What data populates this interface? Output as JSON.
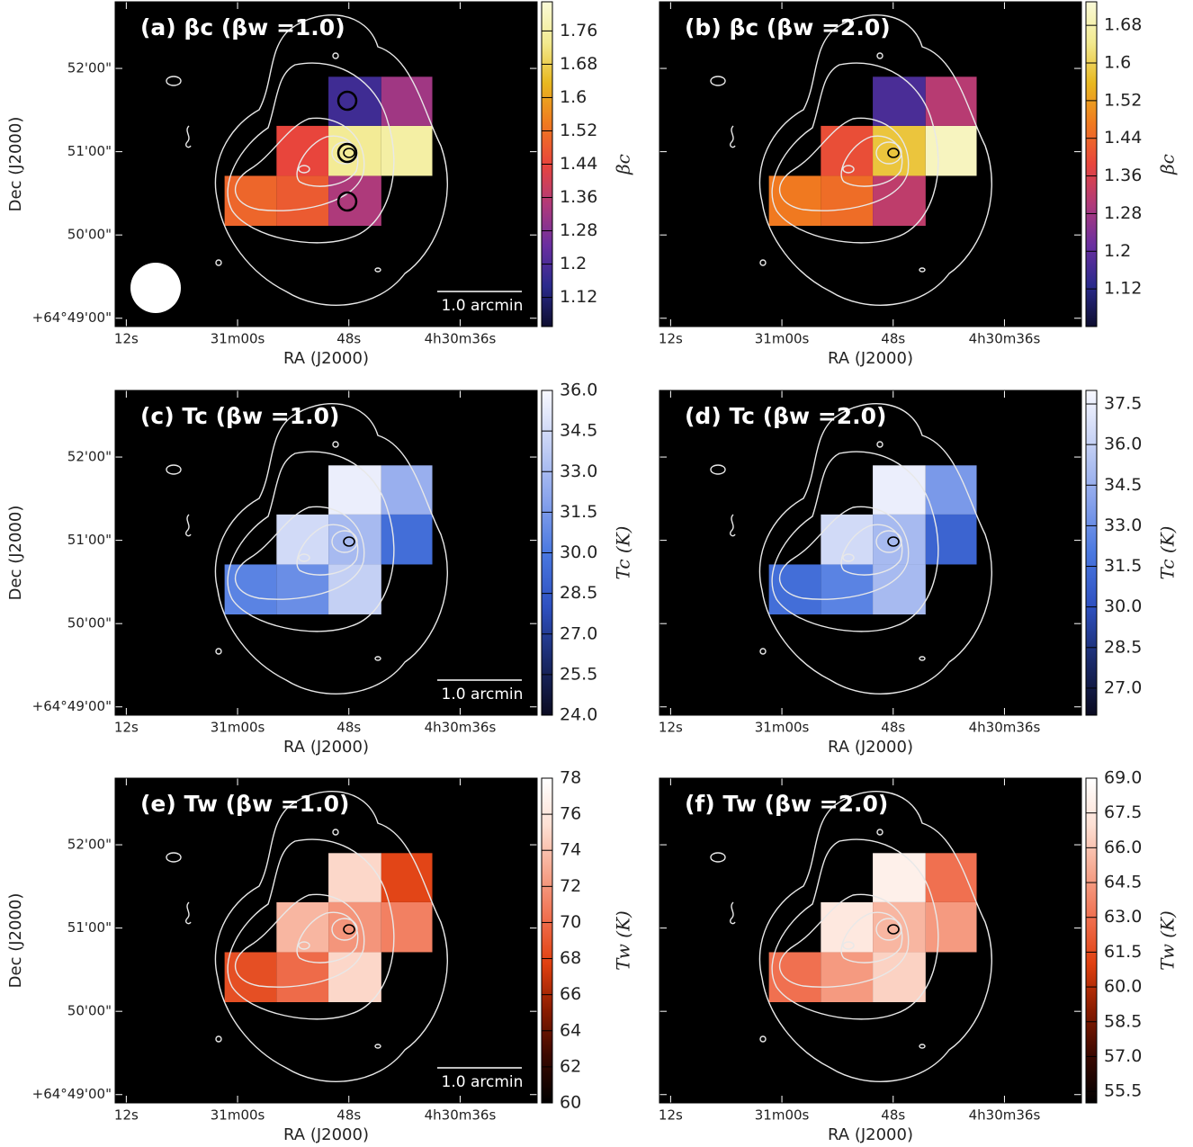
{
  "chart_data": [
    {
      "type": "map",
      "title": "(a) βc (βw =1.0)",
      "xlabel": "RA (J2000)",
      "ylabel": "Dec (J2000)",
      "xlim": [
        73.2,
        27.7
      ],
      "xticks": [
        {
          "value": 72,
          "label": "12s"
        },
        {
          "value": 60,
          "label": "31m00s"
        },
        {
          "value": 48,
          "label": "48s"
        },
        {
          "value": 36,
          "label": "4h30m36s"
        }
      ],
      "ylim": [
        48.9,
        52.8
      ],
      "yticks": [
        {
          "value": 49,
          "label": "+64°49'00\""
        },
        {
          "value": 50,
          "label": "50'00\""
        },
        {
          "value": 51,
          "label": "51'00\""
        },
        {
          "value": 52,
          "label": "52'00\""
        }
      ],
      "x_edges": [
        61.4,
        55.8,
        50.2,
        44.5,
        39.0
      ],
      "y_edges": [
        50.11,
        50.71,
        51.31,
        51.9
      ],
      "values": [
        [
          1.5,
          1.48,
          1.34,
          null
        ],
        [
          null,
          1.44,
          1.74,
          1.76
        ],
        [
          null,
          null,
          1.18,
          1.32
        ]
      ],
      "colormap": [
        "#0d0d2e",
        "#2a2a8c",
        "#6a2fa0",
        "#b03a7a",
        "#e8453c",
        "#f07a20",
        "#e8b820",
        "#f2ea90",
        "#fafad8"
      ],
      "clim": [
        1.05,
        1.83
      ],
      "cticks": [
        1.12,
        1.2,
        1.28,
        1.36,
        1.44,
        1.52,
        1.6,
        1.68,
        1.76
      ],
      "clabel": "βc",
      "scalebar": "1.0 arcmin"
    },
    {
      "type": "map",
      "title": "(b) βc (βw =2.0)",
      "xlabel": "RA (J2000)",
      "xlim": [
        73.2,
        27.7
      ],
      "xticks": [
        {
          "value": 72,
          "label": "12s"
        },
        {
          "value": 60,
          "label": "31m00s"
        },
        {
          "value": 48,
          "label": "48s"
        },
        {
          "value": 36,
          "label": "4h30m36s"
        }
      ],
      "ylim": [
        48.9,
        52.8
      ],
      "yticks": [
        49,
        50,
        51,
        52
      ],
      "x_edges": [
        61.4,
        55.8,
        50.2,
        44.5,
        39.0
      ],
      "y_edges": [
        50.11,
        50.71,
        51.31,
        51.9
      ],
      "values": [
        [
          1.47,
          1.45,
          1.32,
          null
        ],
        [
          null,
          1.4,
          1.58,
          1.7
        ],
        [
          null,
          null,
          1.17,
          1.31
        ]
      ],
      "colormap": [
        "#0d0d2e",
        "#2a2a8c",
        "#6a2fa0",
        "#b03a7a",
        "#e8453c",
        "#f07a20",
        "#e8b820",
        "#f2ea90",
        "#fafad8"
      ],
      "clim": [
        1.04,
        1.73
      ],
      "cticks": [
        1.12,
        1.2,
        1.28,
        1.36,
        1.44,
        1.52,
        1.6,
        1.68
      ],
      "clabel": "βc"
    },
    {
      "type": "map",
      "title": "(c) Tc (βw =1.0)",
      "xlabel": "RA (J2000)",
      "ylabel": "Dec (J2000)",
      "xlim": [
        73.2,
        27.7
      ],
      "xticks": [
        {
          "value": 72,
          "label": "12s"
        },
        {
          "value": 60,
          "label": "31m00s"
        },
        {
          "value": 48,
          "label": "48s"
        },
        {
          "value": 36,
          "label": "4h30m36s"
        }
      ],
      "ylim": [
        48.9,
        52.8
      ],
      "yticks": [
        {
          "value": 49,
          "label": "+64°49'00\""
        },
        {
          "value": 50,
          "label": "50'00\""
        },
        {
          "value": 51,
          "label": "51'00\""
        },
        {
          "value": 52,
          "label": "52'00\""
        }
      ],
      "x_edges": [
        61.4,
        55.8,
        50.2,
        44.5,
        39.0
      ],
      "y_edges": [
        50.11,
        50.71,
        51.31,
        51.9
      ],
      "values": [
        [
          30.5,
          31,
          34,
          null
        ],
        [
          null,
          34.5,
          33,
          29.5
        ],
        [
          null,
          null,
          35.5,
          32.5
        ]
      ],
      "colormap": [
        "#0a0a20",
        "#1a2a6a",
        "#2e50c0",
        "#4a78e0",
        "#8aa4ec",
        "#c4d0f4",
        "#f8f8ff"
      ],
      "clim": [
        24,
        36
      ],
      "cticks": [
        {
          "value": 24,
          "label": "24.0"
        },
        25.5,
        {
          "value": 27,
          "label": "27.0"
        },
        28.5,
        {
          "value": 30,
          "label": "30.0"
        },
        31.5,
        {
          "value": 33,
          "label": "33.0"
        },
        34.5,
        {
          "value": 36,
          "label": "36.0"
        }
      ],
      "clabel": "Tc (K)",
      "scalebar": "1.0 arcmin"
    },
    {
      "type": "map",
      "title": "(d) Tc (βw =2.0)",
      "xlabel": "RA (J2000)",
      "xlim": [
        73.2,
        27.7
      ],
      "xticks": [
        {
          "value": 72,
          "label": "12s"
        },
        {
          "value": 60,
          "label": "31m00s"
        },
        {
          "value": 48,
          "label": "48s"
        },
        {
          "value": 36,
          "label": "4h30m36s"
        }
      ],
      "ylim": [
        48.9,
        52.8
      ],
      "yticks": [
        49,
        50,
        51,
        52
      ],
      "x_edges": [
        61.4,
        55.8,
        50.2,
        44.5,
        39.0
      ],
      "y_edges": [
        50.11,
        50.71,
        51.31,
        51.9
      ],
      "values": [
        [
          31.5,
          32.5,
          35,
          null
        ],
        [
          null,
          36.5,
          35,
          31
        ],
        [
          null,
          null,
          37.5,
          33.5
        ]
      ],
      "colormap": [
        "#0a0a20",
        "#1a2a6a",
        "#2e50c0",
        "#4a78e0",
        "#8aa4ec",
        "#c4d0f4",
        "#f8f8ff"
      ],
      "clim": [
        26,
        38
      ],
      "cticks": [
        {
          "value": 27,
          "label": "27.0"
        },
        28.5,
        {
          "value": 30,
          "label": "30.0"
        },
        31.5,
        {
          "value": 33,
          "label": "33.0"
        },
        34.5,
        {
          "value": 36,
          "label": "36.0"
        },
        37.5
      ],
      "clabel": "Tc (K)"
    },
    {
      "type": "map",
      "title": "(e) Tw (βw =1.0)",
      "xlabel": "RA (J2000)",
      "ylabel": "Dec (J2000)",
      "xlim": [
        73.2,
        27.7
      ],
      "xticks": [
        {
          "value": 72,
          "label": "12s"
        },
        {
          "value": 60,
          "label": "31m00s"
        },
        {
          "value": 48,
          "label": "48s"
        },
        {
          "value": 36,
          "label": "4h30m36s"
        }
      ],
      "ylim": [
        48.9,
        52.8
      ],
      "yticks": [
        {
          "value": 49,
          "label": "+64°49'00\""
        },
        {
          "value": 50,
          "label": "50'00\""
        },
        {
          "value": 51,
          "label": "51'00\""
        },
        {
          "value": 52,
          "label": "52'00\""
        }
      ],
      "x_edges": [
        61.4,
        55.8,
        50.2,
        44.5,
        39.0
      ],
      "y_edges": [
        50.11,
        50.71,
        51.31,
        51.9
      ],
      "values": [
        [
          68.5,
          70,
          75,
          null
        ],
        [
          null,
          73.5,
          72,
          71
        ],
        [
          null,
          null,
          75,
          68
        ]
      ],
      "colormap": [
        "#000000",
        "#3a0800",
        "#8a1c00",
        "#e04010",
        "#f07050",
        "#f6a890",
        "#fde0d4",
        "#ffffff"
      ],
      "clim": [
        60,
        78
      ],
      "cticks": [
        60,
        62,
        64,
        66,
        68,
        70,
        72,
        74,
        76,
        78
      ],
      "clabel": "Tw (K)",
      "scalebar": "1.0 arcmin"
    },
    {
      "type": "map",
      "title": "(f) Tw (βw =2.0)",
      "xlabel": "RA (J2000)",
      "xlim": [
        73.2,
        27.7
      ],
      "xticks": [
        {
          "value": 72,
          "label": "12s"
        },
        {
          "value": 60,
          "label": "31m00s"
        },
        {
          "value": 48,
          "label": "48s"
        },
        {
          "value": 36,
          "label": "4h30m36s"
        }
      ],
      "ylim": [
        48.9,
        52.8
      ],
      "yticks": [
        49,
        50,
        51,
        52
      ],
      "x_edges": [
        61.4,
        55.8,
        50.2,
        44.5,
        39.0
      ],
      "y_edges": [
        50.11,
        50.71,
        51.31,
        51.9
      ],
      "values": [
        [
          63,
          64.5,
          66.5,
          null
        ],
        [
          null,
          67.5,
          65.5,
          64.5
        ],
        [
          null,
          null,
          68,
          63
        ]
      ],
      "colormap": [
        "#000000",
        "#3a0800",
        "#8a1c00",
        "#e04010",
        "#f07050",
        "#f6a890",
        "#fde0d4",
        "#ffffff"
      ],
      "clim": [
        55,
        69
      ],
      "cticks": [
        55.5,
        {
          "value": 57,
          "label": "57.0"
        },
        58.5,
        {
          "value": 60,
          "label": "60.0"
        },
        61.5,
        {
          "value": 63,
          "label": "63.0"
        },
        64.5,
        {
          "value": 66,
          "label": "66.0"
        },
        67.5,
        {
          "value": 69,
          "label": "69.0"
        }
      ],
      "clabel": "Tw (K)"
    }
  ]
}
